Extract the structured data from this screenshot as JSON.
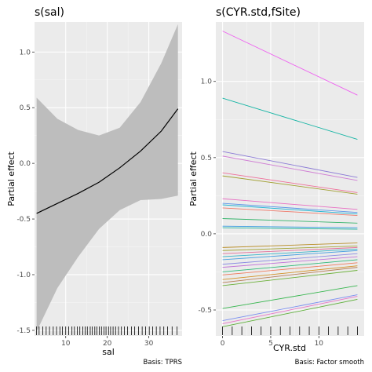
{
  "chart_data": [
    {
      "type": "line",
      "title": "s(sal)",
      "xlabel": "sal",
      "ylabel": "Partial effect",
      "caption": "Basis: TPRS",
      "xlim": [
        2.5,
        38
      ],
      "ylim": [
        -1.55,
        1.27
      ],
      "x_ticks": [
        10,
        20,
        30
      ],
      "y_ticks": [
        -1.5,
        -1.0,
        -0.5,
        0.0,
        0.5,
        1.0
      ],
      "y_tick_labels": [
        "-1.5",
        "-1.0",
        "-0.5",
        "0.0",
        "0.5",
        "1.0"
      ],
      "grid": true,
      "series": [
        {
          "role": "smooth estimate",
          "color": "#000000",
          "x": [
            3,
            8,
            13,
            18,
            23,
            28,
            33,
            37
          ],
          "y": [
            -0.45,
            -0.36,
            -0.27,
            -0.17,
            -0.04,
            0.11,
            0.29,
            0.49
          ]
        }
      ],
      "confidence_band": {
        "color": "#bdbdbd",
        "x": [
          3,
          8,
          13,
          18,
          23,
          28,
          33,
          37
        ],
        "upper": [
          0.59,
          0.4,
          0.3,
          0.25,
          0.32,
          0.55,
          0.9,
          1.25
        ],
        "lower": [
          -1.51,
          -1.12,
          -0.84,
          -0.59,
          -0.42,
          -0.33,
          -0.32,
          -0.29
        ]
      },
      "rug_x": [
        3,
        3.6,
        4.5,
        5.3,
        6.1,
        7,
        7.8,
        8.6,
        9.2,
        10,
        10.7,
        11.5,
        12.1,
        12.8,
        13.4,
        14.1,
        14.7,
        15.2,
        15.9,
        16.4,
        17,
        17.5,
        18.1,
        18.6,
        19.2,
        19.7,
        20.3,
        20.8,
        21.4,
        22,
        22.7,
        23.4,
        24.1,
        24.9,
        25.8,
        26.6,
        27.5,
        28.4,
        29.2,
        30.1,
        30.9,
        31.8,
        32.7,
        33.6,
        34.5,
        35.6,
        36.8
      ]
    },
    {
      "type": "line",
      "title": "s(CYR.std,fSite)",
      "xlabel": "CYR.std",
      "ylabel": "Partial effect",
      "caption": "Basis: Factor smooth",
      "xlim": [
        -0.7,
        14.7
      ],
      "ylim": [
        -0.67,
        1.39
      ],
      "x_ticks": [
        0,
        5,
        10
      ],
      "y_ticks": [
        -0.5,
        0.0,
        0.5,
        1.0
      ],
      "y_tick_labels": [
        "-0.5",
        "0.0",
        "0.5",
        "1.0"
      ],
      "grid": true,
      "series": [
        {
          "color": "#ee63f0",
          "x": [
            0,
            14
          ],
          "y": [
            1.33,
            0.91
          ]
        },
        {
          "color": "#17b5a5",
          "x": [
            0,
            14
          ],
          "y": [
            0.89,
            0.62
          ]
        },
        {
          "color": "#8b7ad6",
          "x": [
            0,
            14
          ],
          "y": [
            0.54,
            0.37
          ]
        },
        {
          "color": "#d07ed4",
          "x": [
            0,
            14
          ],
          "y": [
            0.51,
            0.35
          ]
        },
        {
          "color": "#ef6f9a",
          "x": [
            0,
            14
          ],
          "y": [
            0.4,
            0.27
          ]
        },
        {
          "color": "#a2a033",
          "x": [
            0,
            14
          ],
          "y": [
            0.38,
            0.26
          ]
        },
        {
          "color": "#e86fc3",
          "x": [
            0,
            14
          ],
          "y": [
            0.23,
            0.16
          ]
        },
        {
          "color": "#5d94e8",
          "x": [
            0,
            14
          ],
          "y": [
            0.2,
            0.14
          ]
        },
        {
          "color": "#22b5d4",
          "x": [
            0,
            14
          ],
          "y": [
            0.19,
            0.13
          ]
        },
        {
          "color": "#ef7a6b",
          "x": [
            0,
            14
          ],
          "y": [
            0.17,
            0.12
          ]
        },
        {
          "color": "#35b46b",
          "x": [
            0,
            14
          ],
          "y": [
            0.1,
            0.07
          ]
        },
        {
          "color": "#3a9be0",
          "x": [
            0,
            14
          ],
          "y": [
            0.05,
            0.04
          ]
        },
        {
          "color": "#2ab8a0",
          "x": [
            0,
            14
          ],
          "y": [
            0.04,
            0.03
          ]
        },
        {
          "color": "#b98e26",
          "x": [
            0,
            14
          ],
          "y": [
            -0.09,
            -0.06
          ]
        },
        {
          "color": "#a3a437",
          "x": [
            0,
            14
          ],
          "y": [
            -0.11,
            -0.08
          ]
        },
        {
          "color": "#e2719a",
          "x": [
            0,
            14
          ],
          "y": [
            -0.13,
            -0.09
          ]
        },
        {
          "color": "#37b3c8",
          "x": [
            0,
            14
          ],
          "y": [
            -0.15,
            -0.1
          ]
        },
        {
          "color": "#4aa0e2",
          "x": [
            0,
            14
          ],
          "y": [
            -0.17,
            -0.11
          ]
        },
        {
          "color": "#8a8be3",
          "x": [
            0,
            14
          ],
          "y": [
            -0.2,
            -0.13
          ]
        },
        {
          "color": "#c175d8",
          "x": [
            0,
            14
          ],
          "y": [
            -0.22,
            -0.15
          ]
        },
        {
          "color": "#2fb879",
          "x": [
            0,
            14
          ],
          "y": [
            -0.25,
            -0.17
          ]
        },
        {
          "color": "#ee7a5c",
          "x": [
            0,
            14
          ],
          "y": [
            -0.27,
            -0.19
          ]
        },
        {
          "color": "#d39127",
          "x": [
            0,
            14
          ],
          "y": [
            -0.3,
            -0.21
          ]
        },
        {
          "color": "#b77d55",
          "x": [
            0,
            14
          ],
          "y": [
            -0.32,
            -0.22
          ]
        },
        {
          "color": "#6cb03a",
          "x": [
            0,
            14
          ],
          "y": [
            -0.34,
            -0.24
          ]
        },
        {
          "color": "#36b64e",
          "x": [
            0,
            14
          ],
          "y": [
            -0.49,
            -0.34
          ]
        },
        {
          "color": "#7a8ff0",
          "x": [
            0,
            14
          ],
          "y": [
            -0.57,
            -0.4
          ]
        },
        {
          "color": "#e874c7",
          "x": [
            0,
            14
          ],
          "y": [
            -0.59,
            -0.41
          ]
        },
        {
          "color": "#5fb03b",
          "x": [
            0,
            14
          ],
          "y": [
            -0.61,
            -0.43
          ]
        }
      ],
      "rug_x": [
        0,
        1,
        2,
        3,
        4,
        5,
        6,
        7,
        8,
        9,
        10,
        11,
        12,
        13,
        14
      ]
    }
  ]
}
